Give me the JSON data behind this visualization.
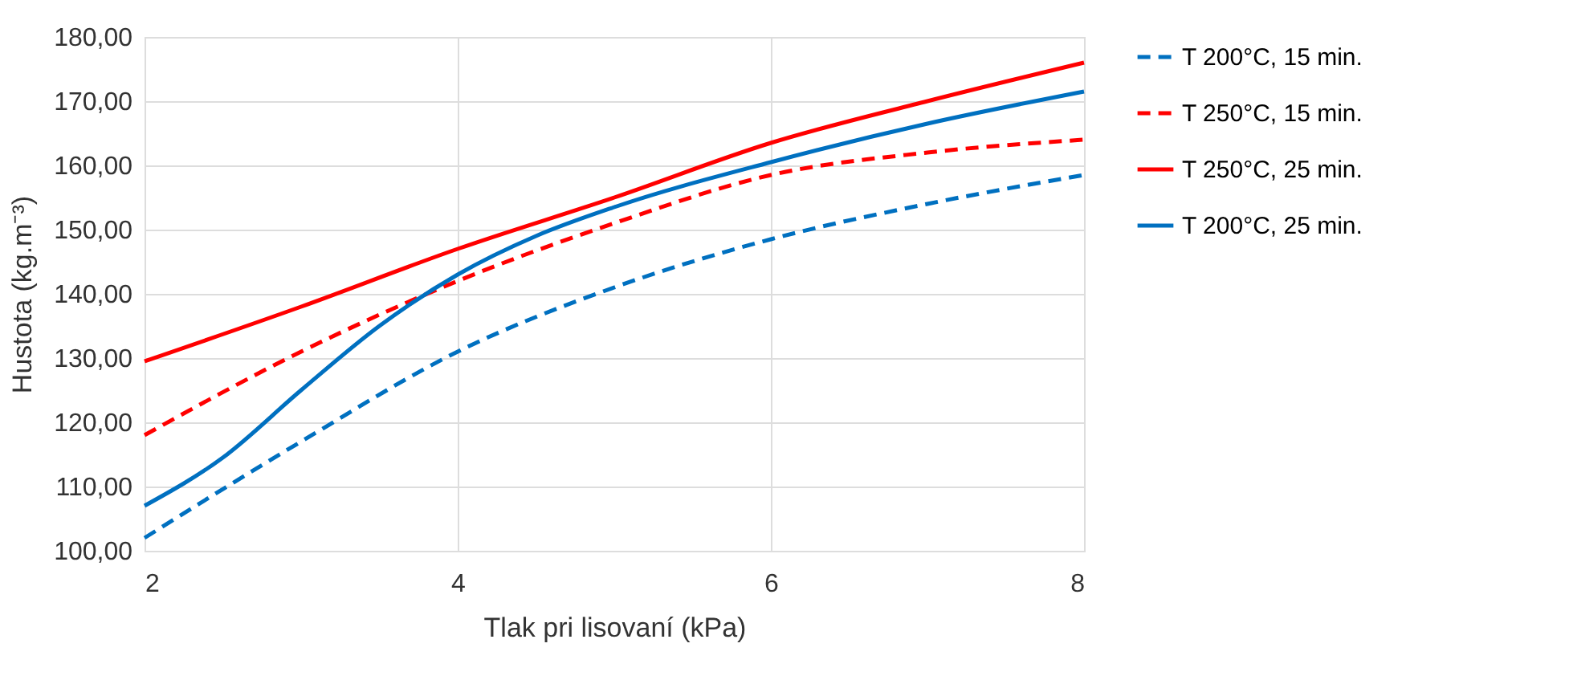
{
  "chart_data": {
    "type": "line",
    "xlabel": "Tlak pri lisovaní (kPa)",
    "ylabel": "Hustota (kg.m⁻³)",
    "xlim": [
      2,
      8
    ],
    "xticks": [
      2,
      4,
      6,
      8
    ],
    "ylim": [
      100,
      180
    ],
    "yticks": [
      {
        "value": 100,
        "label": "100,00"
      },
      {
        "value": 110,
        "label": "110,00"
      },
      {
        "value": 120,
        "label": "120,00"
      },
      {
        "value": 130,
        "label": "130,00"
      },
      {
        "value": 140,
        "label": "140,00"
      },
      {
        "value": 150,
        "label": "150,00"
      },
      {
        "value": 160,
        "label": "160,00"
      },
      {
        "value": 170,
        "label": "170,00"
      },
      {
        "value": 180,
        "label": "180,00"
      }
    ],
    "grid": true,
    "legend": "right",
    "marker": "none",
    "series": [
      {
        "name": "T 200°C, 15 min.",
        "color": "#0070c0",
        "line_style": "dashed",
        "x": [
          2,
          3,
          4,
          5,
          6,
          7,
          8
        ],
        "values": [
          102,
          117,
          131,
          141,
          148.5,
          154,
          158.5
        ]
      },
      {
        "name": "T 250°C, 15 min.",
        "color": "#ff0000",
        "line_style": "dashed",
        "x": [
          2,
          3,
          4,
          5,
          6,
          7,
          8
        ],
        "values": [
          118,
          131,
          142,
          151,
          158.5,
          162,
          164
        ]
      },
      {
        "name": "T 250°C, 25 min.",
        "color": "#ff0000",
        "line_style": "solid",
        "x": [
          2,
          3,
          4,
          5,
          6,
          7,
          8
        ],
        "values": [
          129.5,
          138,
          147,
          155,
          163.5,
          170,
          176
        ]
      },
      {
        "name": "T 200°C, 25 min.",
        "color": "#0070c0",
        "line_style": "solid",
        "x": [
          2,
          2.5,
          3,
          3.5,
          4,
          4.5,
          5,
          6,
          7,
          8
        ],
        "values": [
          107,
          114.5,
          125,
          135,
          143,
          149,
          153.5,
          160.5,
          166.5,
          171.5
        ]
      }
    ]
  }
}
